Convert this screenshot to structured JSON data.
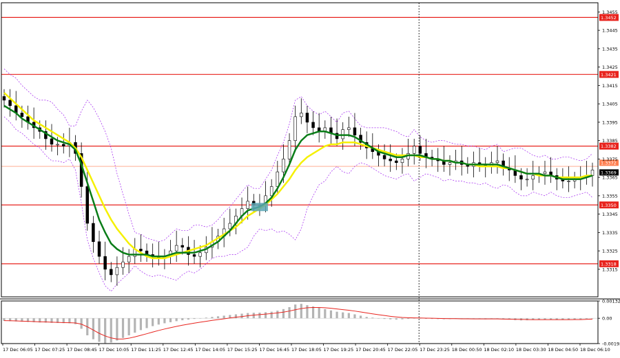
{
  "chart_data": [
    {
      "type": "candlestick",
      "panel": "price",
      "ylim": [
        1.33,
        1.346
      ],
      "yticks": [
        "1.3455",
        "1.3445",
        "1.3435",
        "1.3425",
        "1.3415",
        "1.3405",
        "1.3395",
        "1.3385",
        "1.3375",
        "1.3365",
        "1.3355",
        "1.3345",
        "1.3335",
        "1.3325",
        "1.3315"
      ],
      "xticks": [
        "17 Dec 06:05",
        "17 Dec 07:25",
        "17 Dec 08:45",
        "17 Dec 10:05",
        "17 Dec 11:25",
        "17 Dec 12:45",
        "17 Dec 14:05",
        "17 Dec 15:25",
        "17 Dec 16:45",
        "17 Dec 18:05",
        "17 Dec 19:25",
        "17 Dec 20:45",
        "17 Dec 22:05",
        "17 Dec 23:25",
        "18 Dec 00:50",
        "18 Dec 02:10",
        "18 Dec 03:30",
        "18 Dec 04:50",
        "18 Dec 06:10"
      ],
      "levels": [
        {
          "label": "1.3452",
          "value": 1.3452
        },
        {
          "label": "1.3421",
          "value": 1.3421
        },
        {
          "label": "1.3382",
          "value": 1.3382
        },
        {
          "label": "1.3350",
          "value": 1.335
        },
        {
          "label": "1.3318",
          "value": 1.3318
        }
      ],
      "price_labels": [
        {
          "label": "1.3372",
          "value": 1.3372,
          "color": "#ff7f50"
        },
        {
          "label": "1.3369",
          "value": 1.3369,
          "color": "#000000"
        }
      ],
      "price_line": 1.3371,
      "close_path": [
        1.3407,
        1.3404,
        1.34,
        1.3398,
        1.3395,
        1.3392,
        1.339,
        1.3386,
        1.3383,
        1.3383,
        1.3382,
        1.3384,
        1.3378,
        1.336,
        1.334,
        1.333,
        1.3322,
        1.3315,
        1.3312,
        1.3316,
        1.3319,
        1.3322,
        1.3326,
        1.3325,
        1.3323,
        1.3322,
        1.3321,
        1.3322,
        1.3325,
        1.3328,
        1.3327,
        1.3323,
        1.3322,
        1.3324,
        1.3327,
        1.333,
        1.3333,
        1.3337,
        1.334,
        1.3344,
        1.3348,
        1.3352,
        1.335,
        1.335,
        1.3355,
        1.336,
        1.3368,
        1.3375,
        1.3385,
        1.3398,
        1.34,
        1.3395,
        1.3392,
        1.339,
        1.3392,
        1.3389,
        1.3386,
        1.3391,
        1.3392,
        1.3388,
        1.3384,
        1.3381,
        1.3379,
        1.3377,
        1.3375,
        1.3374,
        1.3373,
        1.3375,
        1.3378,
        1.3382,
        1.3378,
        1.3376,
        1.3375,
        1.3374,
        1.3372,
        1.3373,
        1.3374,
        1.3372,
        1.3371,
        1.3373,
        1.3372,
        1.3371,
        1.3373,
        1.3374,
        1.337,
        1.3369,
        1.3366,
        1.3364,
        1.3364,
        1.3366,
        1.3367,
        1.3368,
        1.3366,
        1.3364,
        1.3363,
        1.3363,
        1.3364,
        1.3365,
        1.3366,
        1.3369
      ],
      "ma_slow_yellow": [
        1.3411,
        1.3408,
        1.3405,
        1.3402,
        1.3399,
        1.3396,
        1.3394,
        1.3392,
        1.339,
        1.3388,
        1.3386,
        1.3384,
        1.3381,
        1.3376,
        1.3369,
        1.3362,
        1.3355,
        1.3348,
        1.3342,
        1.3337,
        1.3333,
        1.3329,
        1.3326,
        1.3324,
        1.3322,
        1.3321,
        1.3321,
        1.3321,
        1.3322,
        1.3323,
        1.3324,
        1.3325,
        1.3326,
        1.3327,
        1.3328,
        1.333,
        1.3332,
        1.3334,
        1.3336,
        1.3338,
        1.3341,
        1.3344,
        1.3346,
        1.3348,
        1.335,
        1.3353,
        1.3356,
        1.336,
        1.3364,
        1.3369,
        1.3373,
        1.3376,
        1.3378,
        1.338,
        1.3382,
        1.3383,
        1.3383,
        1.3384,
        1.3384,
        1.3384,
        1.3383,
        1.3382,
        1.3381,
        1.338,
        1.3379,
        1.3378,
        1.3377,
        1.3377,
        1.3377,
        1.3377,
        1.3376,
        1.3376,
        1.3375,
        1.3375,
        1.3374,
        1.3374,
        1.3373,
        1.3373,
        1.3372,
        1.3372,
        1.3371,
        1.3371,
        1.3371,
        1.3371,
        1.337,
        1.337,
        1.3369,
        1.3368,
        1.3367,
        1.3367,
        1.3366,
        1.3366,
        1.3366,
        1.3365,
        1.3365,
        1.3365,
        1.3365,
        1.3365,
        1.3366,
        1.3366
      ],
      "ma_fast_green": [
        1.3404,
        1.3402,
        1.34,
        1.3397,
        1.3395,
        1.3393,
        1.3391,
        1.3389,
        1.3387,
        1.3385,
        1.3384,
        1.3383,
        1.338,
        1.3372,
        1.3362,
        1.3352,
        1.3342,
        1.3335,
        1.3329,
        1.3326,
        1.3324,
        1.3323,
        1.3323,
        1.3323,
        1.3323,
        1.3322,
        1.3322,
        1.3322,
        1.3323,
        1.3324,
        1.3324,
        1.3324,
        1.3324,
        1.3325,
        1.3326,
        1.3328,
        1.333,
        1.3333,
        1.3336,
        1.334,
        1.3344,
        1.3347,
        1.3348,
        1.3349,
        1.3351,
        1.3354,
        1.3359,
        1.3365,
        1.3372,
        1.338,
        1.3385,
        1.3388,
        1.3389,
        1.339,
        1.339,
        1.3389,
        1.3388,
        1.3388,
        1.3388,
        1.3387,
        1.3385,
        1.3383,
        1.3381,
        1.3379,
        1.3378,
        1.3377,
        1.3376,
        1.3376,
        1.3377,
        1.3377,
        1.3377,
        1.3376,
        1.3375,
        1.3375,
        1.3374,
        1.3374,
        1.3373,
        1.3373,
        1.3372,
        1.3372,
        1.3372,
        1.3372,
        1.3372,
        1.3372,
        1.3371,
        1.337,
        1.3369,
        1.3368,
        1.3367,
        1.3367,
        1.3367,
        1.3366,
        1.3366,
        1.3365,
        1.3364,
        1.3364,
        1.3364,
        1.3364,
        1.3365,
        1.3366
      ]
    },
    {
      "type": "histogram",
      "panel": "oscillator",
      "ylim": [
        -0.00193,
        0.00132
      ],
      "yticks": [
        "0.00132",
        "0.00",
        "-0.00193"
      ],
      "histogram": [
        -0.0002,
        -0.00022,
        -0.00024,
        -0.00026,
        -0.00028,
        -0.0003,
        -0.00032,
        -0.00033,
        -0.00035,
        -0.00036,
        -0.00037,
        -0.00038,
        -0.00045,
        -0.0008,
        -0.0013,
        -0.0016,
        -0.0018,
        -0.0019,
        -0.00185,
        -0.0017,
        -0.0015,
        -0.0013,
        -0.0011,
        -0.0009,
        -0.00075,
        -0.0006,
        -0.00048,
        -0.00038,
        -0.0003,
        -0.00022,
        -0.00015,
        -0.0001,
        -5e-05,
        0.0,
        5e-05,
        0.0001,
        0.00015,
        0.0002,
        0.00025,
        0.0003,
        0.00035,
        0.0004,
        0.00042,
        0.00043,
        0.00046,
        0.0005,
        0.00058,
        0.0007,
        0.00085,
        0.00105,
        0.0011,
        0.001,
        0.0009,
        0.0008,
        0.0007,
        0.0006,
        0.0005,
        0.00045,
        0.0004,
        0.0003,
        0.0002,
        0.0001,
        5e-05,
        0.0,
        -5e-05,
        -8e-05,
        -0.0001,
        -8e-05,
        -5e-05,
        0.0,
        -2e-05,
        -4e-05,
        -5e-05,
        -6e-05,
        -7e-05,
        -6e-05,
        -5e-05,
        -6e-05,
        -7e-05,
        -6e-05,
        -7e-05,
        -8e-05,
        -6e-05,
        -5e-05,
        -8e-05,
        -0.0001,
        -0.00014,
        -0.00016,
        -0.00015,
        -0.00013,
        -0.00012,
        -0.00011,
        -0.00012,
        -0.00013,
        -0.00013,
        -0.00012,
        -0.0001,
        -8e-05,
        -5e-05,
        -2e-05
      ],
      "signal": [
        -0.00018,
        -0.00019,
        -0.0002,
        -0.00022,
        -0.00023,
        -0.00025,
        -0.00027,
        -0.00028,
        -0.0003,
        -0.00031,
        -0.00033,
        -0.00034,
        -0.00036,
        -0.00045,
        -0.00065,
        -0.0009,
        -0.00115,
        -0.00135,
        -0.0015,
        -0.00158,
        -0.00158,
        -0.00152,
        -0.00142,
        -0.0013,
        -0.00118,
        -0.00105,
        -0.00093,
        -0.00082,
        -0.00072,
        -0.00062,
        -0.00053,
        -0.00045,
        -0.00037,
        -0.0003,
        -0.00023,
        -0.00016,
        -0.0001,
        -4e-05,
        2e-05,
        8e-05,
        0.00013,
        0.00019,
        0.00024,
        0.00028,
        0.00032,
        0.00036,
        0.00041,
        0.00047,
        0.00055,
        0.00065,
        0.00074,
        0.0008,
        0.00082,
        0.00082,
        0.0008,
        0.00076,
        0.00071,
        0.00066,
        0.00061,
        0.00055,
        0.00048,
        0.00041,
        0.00034,
        0.00027,
        0.00021,
        0.00015,
        0.0001,
        6e-05,
        4e-05,
        3e-05,
        2e-05,
        1e-05,
        0.0,
        -1e-05,
        -2e-05,
        -3e-05,
        -3e-05,
        -4e-05,
        -4e-05,
        -5e-05,
        -5e-05,
        -5e-05,
        -5e-05,
        -5e-05,
        -6e-05,
        -7e-05,
        -8e-05,
        -9e-05,
        -0.0001,
        -0.00011,
        -0.00011,
        -0.00011,
        -0.00011,
        -0.00011,
        -0.00011,
        -0.00011,
        -0.0001,
        -0.0001,
        -8e-05,
        -6e-05
      ]
    }
  ],
  "colors": {
    "candle": "#000000",
    "level_line": "#e8231d",
    "price_line": "#ff7f50",
    "ma_slow": "#f5f000",
    "ma_fast": "#0a7d18",
    "envelope": "#a020f0",
    "histogram": "#b4b4b4",
    "signal": "#e8231d",
    "marker": "#5aa6b4"
  }
}
